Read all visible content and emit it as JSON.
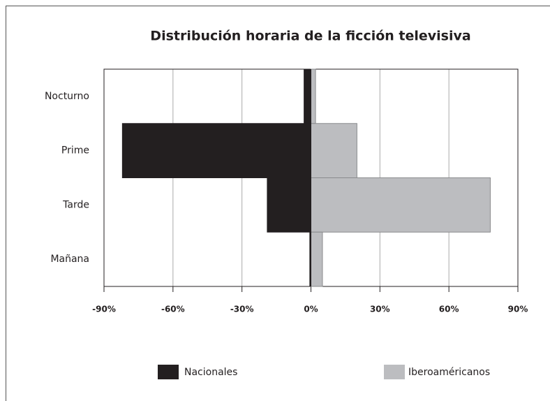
{
  "chart_data": {
    "type": "bar",
    "orientation": "horizontal",
    "title": "Distribución horaria de la ficción televisiva",
    "categories": [
      "Nocturno",
      "Prime",
      "Tarde",
      "Mañana"
    ],
    "series": [
      {
        "name": "Nacionales",
        "color": "#231f20",
        "values": [
          -3,
          -82,
          -19,
          -0.5
        ]
      },
      {
        "name": "Iberoaméricanos",
        "color": "#bcbdc0",
        "values": [
          2,
          20,
          78,
          5
        ]
      }
    ],
    "xlim": [
      -90,
      90
    ],
    "xticks": [
      {
        "value": -90,
        "label": "-90%"
      },
      {
        "value": -60,
        "label": "-60%"
      },
      {
        "value": -30,
        "label": "-30%"
      },
      {
        "value": 0,
        "label": "0%"
      },
      {
        "value": 30,
        "label": "30%"
      },
      {
        "value": 60,
        "label": "60%"
      },
      {
        "value": 90,
        "label": "90%"
      }
    ],
    "grid": true,
    "legend": "bottom"
  }
}
